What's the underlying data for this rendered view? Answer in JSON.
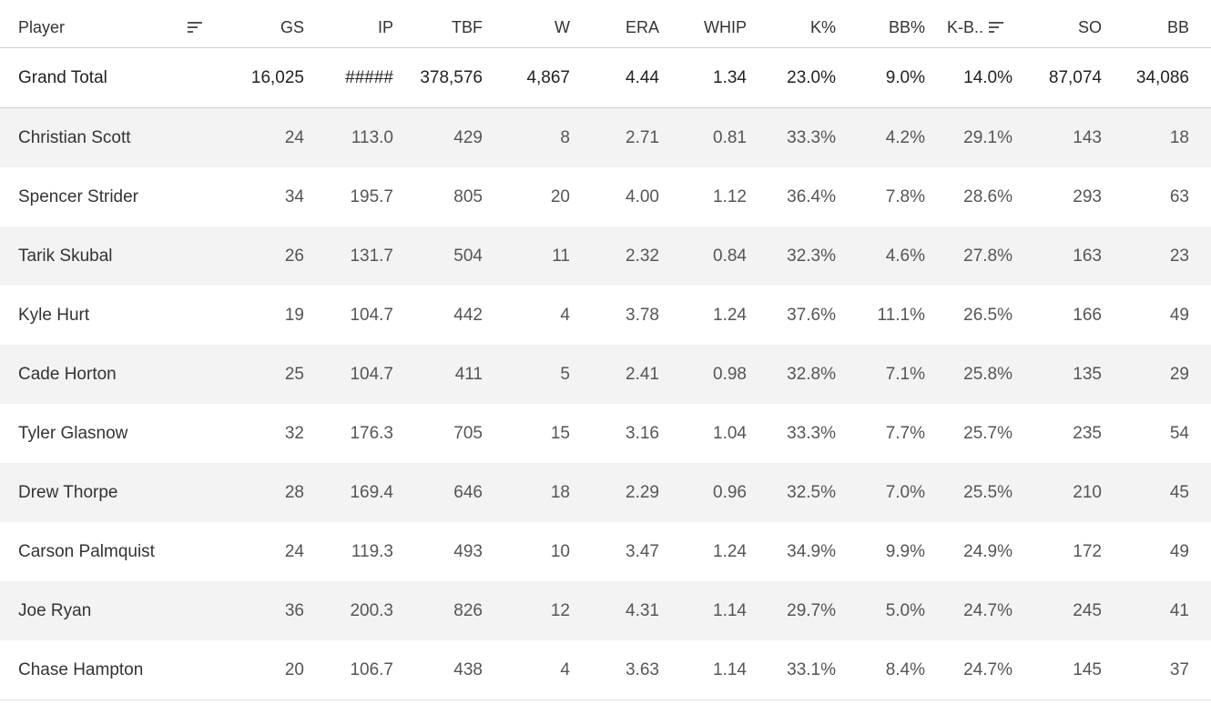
{
  "chart_data": {
    "type": "table",
    "columns": [
      "Player",
      "GS",
      "IP",
      "TBF",
      "W",
      "ERA",
      "WHIP",
      "K%",
      "BB%",
      "K-B..",
      "SO",
      "BB"
    ],
    "sorted_columns": [
      "Player",
      "K-B.."
    ],
    "total": {
      "label": "Grand Total",
      "values": [
        "16,025",
        "#####",
        "378,576",
        "4,867",
        "4.44",
        "1.34",
        "23.0%",
        "9.0%",
        "14.0%",
        "87,074",
        "34,086"
      ]
    },
    "rows": [
      {
        "player": "Christian Scott",
        "values": [
          "24",
          "113.0",
          "429",
          "8",
          "2.71",
          "0.81",
          "33.3%",
          "4.2%",
          "29.1%",
          "143",
          "18"
        ]
      },
      {
        "player": "Spencer Strider",
        "values": [
          "34",
          "195.7",
          "805",
          "20",
          "4.00",
          "1.12",
          "36.4%",
          "7.8%",
          "28.6%",
          "293",
          "63"
        ]
      },
      {
        "player": "Tarik Skubal",
        "values": [
          "26",
          "131.7",
          "504",
          "11",
          "2.32",
          "0.84",
          "32.3%",
          "4.6%",
          "27.8%",
          "163",
          "23"
        ]
      },
      {
        "player": "Kyle Hurt",
        "values": [
          "19",
          "104.7",
          "442",
          "4",
          "3.78",
          "1.24",
          "37.6%",
          "11.1%",
          "26.5%",
          "166",
          "49"
        ]
      },
      {
        "player": "Cade Horton",
        "values": [
          "25",
          "104.7",
          "411",
          "5",
          "2.41",
          "0.98",
          "32.8%",
          "7.1%",
          "25.8%",
          "135",
          "29"
        ]
      },
      {
        "player": "Tyler Glasnow",
        "values": [
          "32",
          "176.3",
          "705",
          "15",
          "3.16",
          "1.04",
          "33.3%",
          "7.7%",
          "25.7%",
          "235",
          "54"
        ]
      },
      {
        "player": "Drew Thorpe",
        "values": [
          "28",
          "169.4",
          "646",
          "18",
          "2.29",
          "0.96",
          "32.5%",
          "7.0%",
          "25.5%",
          "210",
          "45"
        ]
      },
      {
        "player": "Carson Palmquist",
        "values": [
          "24",
          "119.3",
          "493",
          "10",
          "3.47",
          "1.24",
          "34.9%",
          "9.9%",
          "24.9%",
          "172",
          "49"
        ]
      },
      {
        "player": "Joe Ryan",
        "values": [
          "36",
          "200.3",
          "826",
          "12",
          "4.31",
          "1.14",
          "29.7%",
          "5.0%",
          "24.7%",
          "245",
          "41"
        ]
      },
      {
        "player": "Chase Hampton",
        "values": [
          "20",
          "106.7",
          "438",
          "4",
          "3.63",
          "1.14",
          "33.1%",
          "8.4%",
          "24.7%",
          "145",
          "37"
        ]
      }
    ]
  },
  "icons": {
    "sort": "sort-descending-icon"
  },
  "colors": {
    "row_shade": "#f3f3f3",
    "divider": "#cfcfcf"
  }
}
